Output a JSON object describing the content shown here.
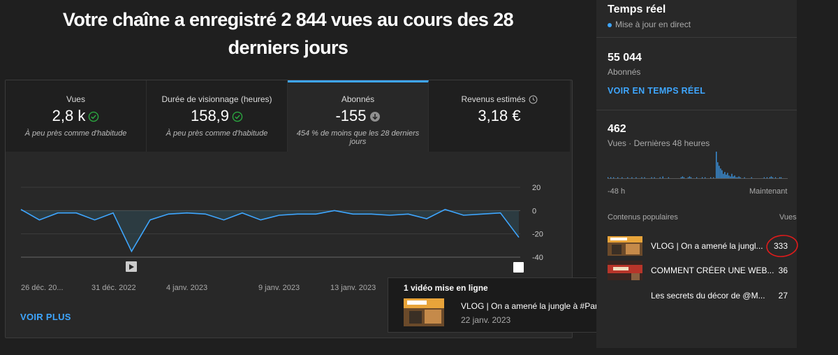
{
  "headline": "Votre chaîne a enregistré 2 844 vues au cours des 28 derniers jours",
  "metrics": [
    {
      "title": "Vues",
      "value": "2,8 k",
      "note": "À peu près comme d'habitude",
      "icon": "check-circle-icon"
    },
    {
      "title": "Durée de visionnage (heures)",
      "value": "158,9",
      "note": "À peu près comme d'habitude",
      "icon": "check-circle-icon"
    },
    {
      "title": "Abonnés",
      "value": "-155",
      "note": "454 % de moins que les 28 derniers jours",
      "icon": "down-arrow-circle-icon"
    },
    {
      "title": "Revenus estimés",
      "value": "3,18 €",
      "note": "",
      "icon": "clock-icon"
    }
  ],
  "chart_data": {
    "type": "area",
    "series": [
      {
        "values": [
          1,
          -8,
          -2,
          -2,
          -8,
          -2,
          -35,
          -8,
          -3,
          -2,
          -3,
          -8,
          -2,
          -8,
          -4,
          -3,
          -3,
          0,
          -3,
          -3,
          -4,
          -3,
          -7,
          1,
          -4,
          -3,
          -2,
          -23
        ]
      }
    ],
    "yticks": [
      20,
      0,
      -20,
      -40
    ],
    "ylim": [
      -40,
      20
    ],
    "xticks": [
      "26 déc. 20...",
      "31 déc. 2022",
      "4 janv. 2023",
      "9 janv. 2023",
      "13 janv. 2023"
    ],
    "grid": true
  },
  "voir_plus": "VOIR PLUS",
  "tooltip": {
    "heading": "1 vidéo mise en ligne",
    "video_title": "VLOG | On a amené la jungle à #Paris ! ...",
    "date": "22 janv. 2023"
  },
  "realtime": {
    "title": "Temps réel",
    "live_label": "Mise à jour en direct",
    "subscribers": "55 044",
    "subscribers_label": "Abonnés",
    "link": "VOIR EN TEMPS RÉEL",
    "views": "462",
    "views_label": "Vues · Dernières 48 heures",
    "bars": [
      1,
      0,
      1,
      0,
      1,
      0,
      0,
      1,
      0,
      0,
      1,
      0,
      0,
      0,
      1,
      0,
      0,
      1,
      0,
      0,
      1,
      0,
      0,
      0,
      1,
      0,
      1,
      0,
      0,
      0,
      0,
      1,
      0,
      1,
      0,
      0,
      0,
      1,
      0,
      2,
      0,
      0,
      0,
      1,
      0,
      0,
      0,
      0,
      0,
      0,
      0,
      0,
      1,
      2,
      1,
      0,
      0,
      1,
      2,
      1,
      0,
      0,
      0,
      1,
      0,
      0,
      0,
      1,
      0,
      1,
      0,
      0,
      0,
      1,
      0,
      1,
      0,
      30,
      18,
      14,
      11,
      9,
      5,
      7,
      4,
      6,
      3,
      2,
      5,
      2,
      3,
      1,
      1,
      2,
      1,
      0,
      0,
      1,
      0,
      0,
      0,
      0,
      1,
      0,
      0,
      0,
      0,
      0,
      0,
      0,
      0,
      1,
      0,
      1,
      0,
      1,
      2,
      1,
      0,
      1,
      0,
      0,
      1,
      1,
      0,
      0,
      0,
      0
    ],
    "axis_left": "-48 h",
    "axis_right": "Maintenant",
    "popular_header": "Contenus populaires",
    "views_header": "Vues",
    "popular": [
      {
        "title": "VLOG | On a amené la jungl...",
        "views": "333"
      },
      {
        "title": "COMMENT CRÉER UNE WEB...",
        "views": "36"
      },
      {
        "title": "Les secrets du décor de @M...",
        "views": "27"
      }
    ]
  }
}
